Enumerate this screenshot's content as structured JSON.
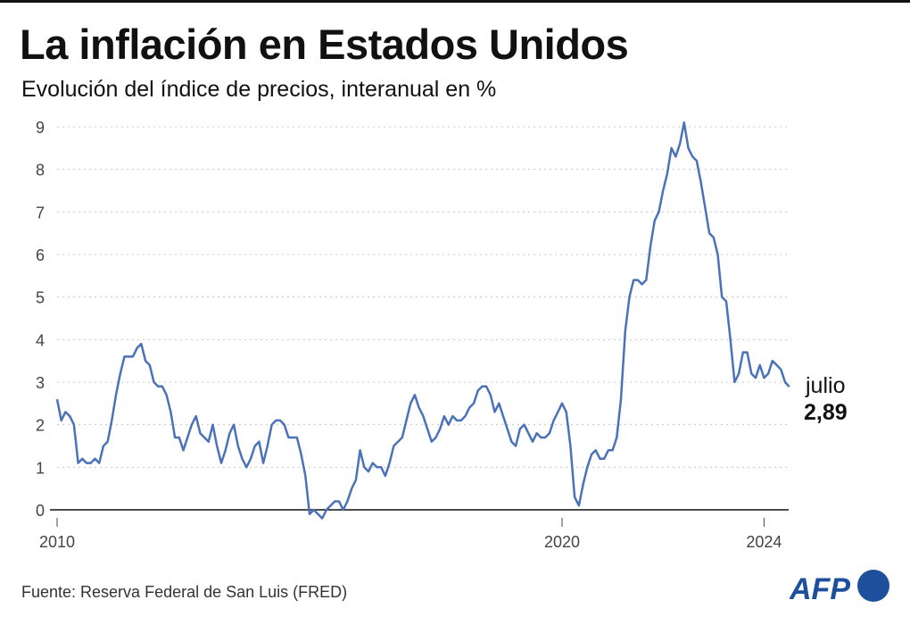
{
  "title": "La inflación en Estados Unidos",
  "subtitle": "Evolución del índice de precios, interanual en %",
  "source": "Fuente: Reserva Federal de San Luis (FRED)",
  "logo": "AFP",
  "colors": {
    "line": "#4a72b8",
    "logo": "#1d4f9c",
    "grid": "#c8c8c8"
  },
  "chart_data": {
    "type": "line",
    "title": "La inflación en Estados Unidos",
    "subtitle": "Evolución del índice de precios, interanual en %",
    "x_start": "2010-01",
    "x_end": "2024-07",
    "frequency": "monthly",
    "xticks": [
      "2010",
      "2020",
      "2024"
    ],
    "yticks": [
      "0",
      "1",
      "2",
      "3",
      "4",
      "5",
      "6",
      "7",
      "8",
      "9"
    ],
    "ylim": [
      0,
      9
    ],
    "grid": "horizontal dotted",
    "annotation": {
      "month": "julio",
      "value": "2,89"
    },
    "values": [
      2.6,
      2.1,
      2.3,
      2.2,
      2.0,
      1.1,
      1.2,
      1.1,
      1.1,
      1.2,
      1.1,
      1.5,
      1.6,
      2.1,
      2.7,
      3.2,
      3.6,
      3.6,
      3.6,
      3.8,
      3.9,
      3.5,
      3.4,
      3.0,
      2.9,
      2.9,
      2.7,
      2.3,
      1.7,
      1.7,
      1.4,
      1.7,
      2.0,
      2.2,
      1.8,
      1.7,
      1.6,
      2.0,
      1.5,
      1.1,
      1.4,
      1.8,
      2.0,
      1.5,
      1.2,
      1.0,
      1.2,
      1.5,
      1.6,
      1.1,
      1.5,
      2.0,
      2.1,
      2.1,
      2.0,
      1.7,
      1.7,
      1.7,
      1.3,
      0.8,
      -0.1,
      0.0,
      -0.1,
      -0.2,
      0.0,
      0.1,
      0.2,
      0.2,
      0.0,
      0.2,
      0.5,
      0.7,
      1.4,
      1.0,
      0.9,
      1.1,
      1.0,
      1.0,
      0.8,
      1.1,
      1.5,
      1.6,
      1.7,
      2.1,
      2.5,
      2.7,
      2.4,
      2.2,
      1.9,
      1.6,
      1.7,
      1.9,
      2.2,
      2.0,
      2.2,
      2.1,
      2.1,
      2.2,
      2.4,
      2.5,
      2.8,
      2.9,
      2.9,
      2.7,
      2.3,
      2.5,
      2.2,
      1.9,
      1.6,
      1.5,
      1.9,
      2.0,
      1.8,
      1.6,
      1.8,
      1.7,
      1.7,
      1.8,
      2.1,
      2.3,
      2.5,
      2.3,
      1.5,
      0.3,
      0.1,
      0.6,
      1.0,
      1.3,
      1.4,
      1.2,
      1.2,
      1.4,
      1.4,
      1.7,
      2.6,
      4.2,
      5.0,
      5.4,
      5.4,
      5.3,
      5.4,
      6.2,
      6.8,
      7.0,
      7.5,
      7.9,
      8.5,
      8.3,
      8.6,
      9.1,
      8.5,
      8.3,
      8.2,
      7.7,
      7.1,
      6.5,
      6.4,
      6.0,
      5.0,
      4.9,
      4.0,
      3.0,
      3.2,
      3.7,
      3.7,
      3.2,
      3.1,
      3.4,
      3.1,
      3.2,
      3.5,
      3.4,
      3.3,
      3.0,
      2.89
    ]
  }
}
